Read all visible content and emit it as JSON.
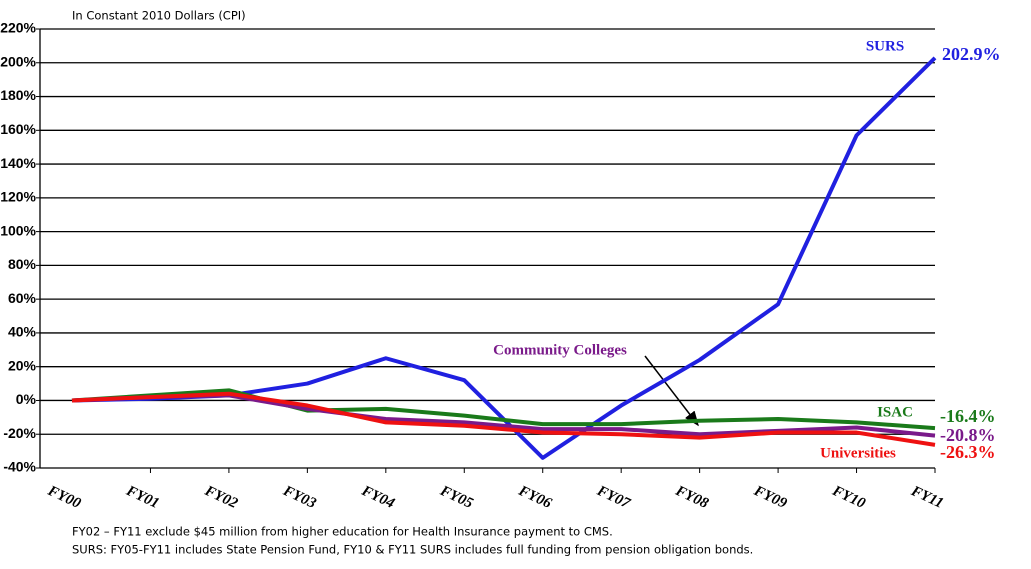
{
  "chart_data": {
    "type": "line",
    "subtitle": "In Constant 2010 Dollars (CPI)",
    "categories": [
      "FY00",
      "FY01",
      "FY02",
      "FY03",
      "FY04",
      "FY05",
      "FY06",
      "FY07",
      "FY08",
      "FY09",
      "FY10",
      "FY11"
    ],
    "series": [
      {
        "name": "SURS",
        "color": "#2020e0",
        "values": [
          0,
          1,
          3,
          10,
          25,
          12,
          -34,
          -3,
          24,
          57,
          157,
          202.9
        ],
        "value_labels": [
          null,
          null,
          null,
          null,
          null,
          null,
          null,
          null,
          null,
          null,
          null,
          "202.9%"
        ]
      },
      {
        "name": "ISAC",
        "color": "#1a7a1a",
        "values": [
          0,
          3,
          6,
          -6,
          -5,
          -9,
          -14,
          -14,
          -12,
          -11,
          -13,
          -16.4
        ],
        "value_labels": [
          null,
          null,
          null,
          null,
          null,
          null,
          null,
          null,
          null,
          null,
          null,
          "-16.4%"
        ]
      },
      {
        "name": "Community Colleges",
        "color": "#7a1a8a",
        "values": [
          0,
          2,
          3,
          -5,
          -11,
          -13,
          -17,
          -17,
          -20,
          -18,
          -16,
          -20.8
        ],
        "value_labels": [
          null,
          null,
          null,
          null,
          null,
          null,
          null,
          null,
          null,
          null,
          null,
          "-20.8%"
        ]
      },
      {
        "name": "Universities",
        "color": "#ee1111",
        "values": [
          0,
          2,
          4,
          -3,
          -13,
          -15,
          -19,
          -20,
          -22,
          -19,
          -19,
          -26.3
        ],
        "value_labels": [
          null,
          null,
          null,
          null,
          null,
          null,
          null,
          null,
          null,
          null,
          null,
          "-26.3%"
        ]
      }
    ],
    "ylim": [
      -40,
      220
    ],
    "yticks": [
      {
        "value": -40,
        "label": "-40%"
      },
      {
        "value": -20,
        "label": "-20%"
      },
      {
        "value": 0,
        "label": "0%"
      },
      {
        "value": 20,
        "label": "20%"
      },
      {
        "value": 40,
        "label": "40%"
      },
      {
        "value": 60,
        "label": "60%"
      },
      {
        "value": 80,
        "label": "80%"
      },
      {
        "value": 100,
        "label": "100%"
      },
      {
        "value": 120,
        "label": "120%"
      },
      {
        "value": 140,
        "label": "140%"
      },
      {
        "value": 160,
        "label": "160%"
      },
      {
        "value": 180,
        "label": "180%"
      },
      {
        "value": 200,
        "label": "200%"
      },
      {
        "value": 220,
        "label": "220%"
      }
    ],
    "grid": true,
    "notes": [
      "FY02 – FY11 exclude $45 million from higher education for Health Insurance payment to CMS.",
      "SURS:  FY05-FY11 includes State Pension Fund, FY10 & FY11 SURS includes full funding from pension obligation bonds."
    ]
  }
}
